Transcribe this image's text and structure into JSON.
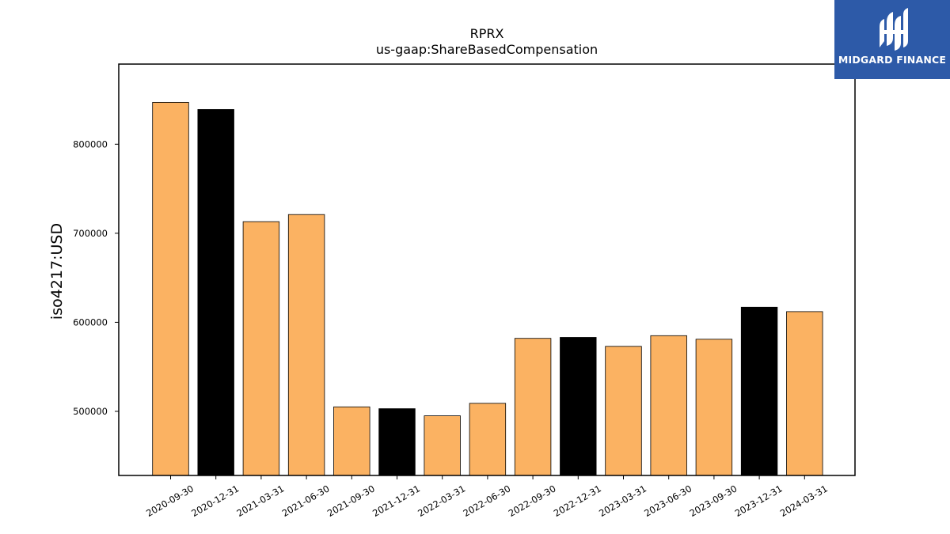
{
  "chart_data": {
    "type": "bar",
    "title": "RPRX",
    "subtitle": "us-gaap:ShareBasedCompensation",
    "ylabel": "iso4217:USD",
    "xlabel": "",
    "ylim": [
      428000,
      890000
    ],
    "yticks": [
      500000,
      600000,
      700000,
      800000
    ],
    "grid": false,
    "categories": [
      "2020-09-30",
      "2020-12-31",
      "2021-03-31",
      "2021-06-30",
      "2021-09-30",
      "2021-12-31",
      "2022-03-31",
      "2022-06-30",
      "2022-09-30",
      "2022-12-31",
      "2023-03-31",
      "2023-06-30",
      "2023-09-30",
      "2023-12-31",
      "2024-03-31"
    ],
    "values": [
      847000,
      839000,
      713000,
      721000,
      505000,
      503000,
      495000,
      509000,
      582000,
      583000,
      573000,
      585000,
      581000,
      617000,
      612000
    ],
    "bar_colors": [
      "#fbb262",
      "#000000",
      "#fbb262",
      "#fbb262",
      "#fbb262",
      "#000000",
      "#fbb262",
      "#fbb262",
      "#fbb262",
      "#000000",
      "#fbb262",
      "#fbb262",
      "#fbb262",
      "#000000",
      "#fbb262"
    ]
  },
  "logo": {
    "text": "MIDGARD FINANCE",
    "background": "#2d5aa8"
  }
}
